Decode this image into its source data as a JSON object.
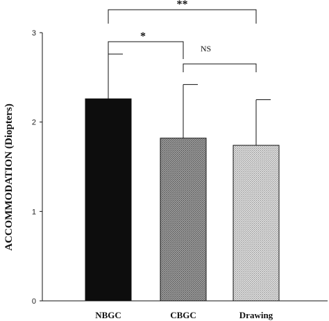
{
  "chart_data": {
    "type": "bar",
    "title": "",
    "xlabel": "",
    "ylabel": "ACCOMMODATION (Diopters)",
    "categories": [
      "NBGC",
      "CBGC",
      "Drawing"
    ],
    "values": [
      2.26,
      1.82,
      1.74
    ],
    "error_upper": [
      2.76,
      2.42,
      2.25
    ],
    "bar_fills": [
      "#0d0d0d",
      "#8a8a8a",
      "#cdcdcd"
    ],
    "bar_patterns": [
      "solid",
      "stipple-dark",
      "stipple-light"
    ],
    "ylim": [
      0,
      3
    ],
    "yticks": [
      "0",
      "1",
      "2",
      "3"
    ],
    "grid": false,
    "legend": "none",
    "significance": [
      {
        "from": "NBGC",
        "to": "Drawing",
        "label": "**"
      },
      {
        "from": "NBGC",
        "to": "CBGC",
        "label": "*"
      },
      {
        "from": "CBGC",
        "to": "Drawing",
        "label": "NS"
      }
    ]
  }
}
